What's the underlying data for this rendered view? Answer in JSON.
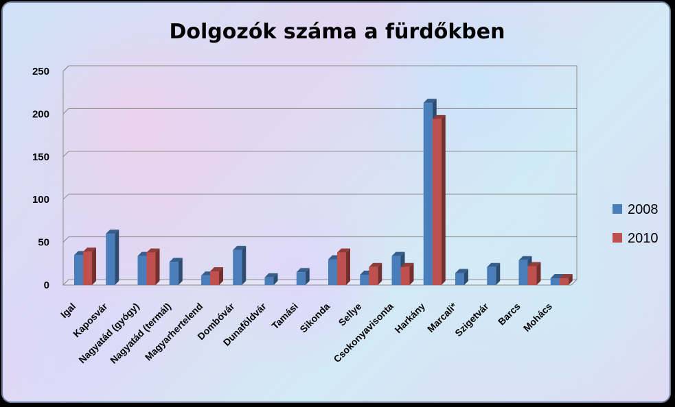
{
  "chart_data": {
    "type": "bar",
    "title": "Dolgozók száma a fürdőkben",
    "categories": [
      "Igal",
      "Kaposvár",
      "Nagyatád (gyógy)",
      "Nagyatád (termál)",
      "Magyarhertelend",
      "Dombóvár",
      "Dunaföldvár",
      "Tamási",
      "Sikonda",
      "Sellye",
      "Csokonyavisonta",
      "Harkány",
      "Marcali*",
      "Szigetvár",
      "Barcs",
      "Mohács"
    ],
    "series": [
      {
        "name": "2008",
        "color": "#4a7ebb",
        "values": [
          35,
          60,
          34,
          27,
          11,
          41,
          9,
          15,
          30,
          12,
          34,
          213,
          14,
          21,
          29,
          8
        ]
      },
      {
        "name": "2010",
        "color": "#c0504d",
        "values": [
          39,
          null,
          38,
          null,
          16,
          null,
          null,
          null,
          38,
          21,
          21,
          194,
          null,
          null,
          22,
          8
        ]
      }
    ],
    "yticks": [
      0,
      50,
      100,
      150,
      200,
      250
    ],
    "ylim": [
      0,
      250
    ],
    "grid": true,
    "legend_position": "right"
  }
}
